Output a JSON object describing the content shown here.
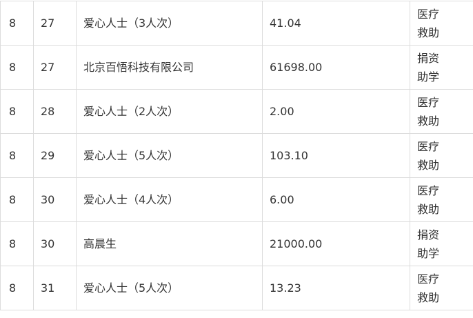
{
  "rows": [
    {
      "month": "8",
      "day": "27",
      "donor": "爱心人士（3人次）",
      "amount": "41.04",
      "purpose": "医疗救助"
    },
    {
      "month": "8",
      "day": "27",
      "donor": "北京百悟科技有限公司",
      "amount": "61698.00",
      "purpose": "捐资助学"
    },
    {
      "month": "8",
      "day": "28",
      "donor": "爱心人士（2人次）",
      "amount": "2.00",
      "purpose": "医疗救助"
    },
    {
      "month": "8",
      "day": "29",
      "donor": "爱心人士（5人次）",
      "amount": "103.10",
      "purpose": "医疗救助"
    },
    {
      "month": "8",
      "day": "30",
      "donor": "爱心人士（4人次）",
      "amount": "6.00",
      "purpose": "医疗救助"
    },
    {
      "month": "8",
      "day": "30",
      "donor": "高晨生",
      "amount": "21000.00",
      "purpose": "捐资助学"
    },
    {
      "month": "8",
      "day": "31",
      "donor": "爱心人士（5人次）",
      "amount": "13.23",
      "purpose": "医疗救助"
    }
  ]
}
